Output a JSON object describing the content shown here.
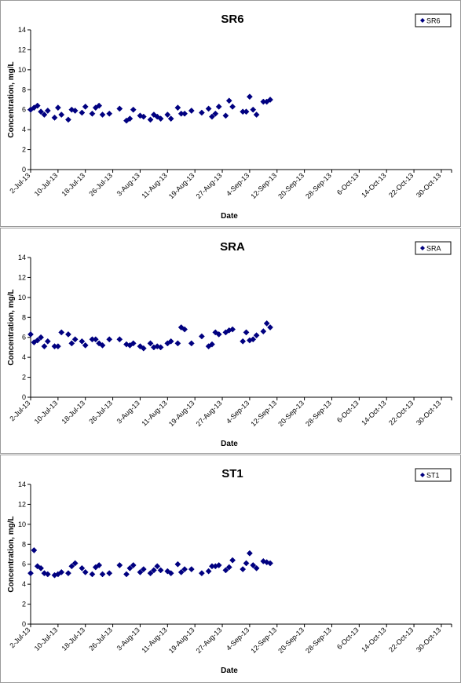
{
  "chart_data": [
    {
      "type": "scatter",
      "title": "SR6",
      "xlabel": "Date",
      "ylabel": "Concentration, mg/L",
      "ylim": [
        0,
        14
      ],
      "yticks": [
        0,
        2,
        4,
        6,
        8,
        10,
        12,
        14
      ],
      "xlim": [
        "2-Jul-13",
        "2-Nov-13"
      ],
      "xtick_labels": [
        "2-Jul-13",
        "10-Jul-13",
        "18-Jul-13",
        "26-Jul-13",
        "3-Aug-13",
        "11-Aug-13",
        "19-Aug-13",
        "27-Aug-13",
        "4-Sep-13",
        "12-Sep-13",
        "20-Sep-13",
        "28-Sep-13",
        "6-Oct-13",
        "14-Oct-13",
        "22-Oct-13",
        "30-Oct-13"
      ],
      "grid": false,
      "legend_position": "top-right",
      "marker_color": "#000080",
      "series": [
        {
          "name": "SR6",
          "points": [
            {
              "x": "2-Jul-13",
              "y": 6.0
            },
            {
              "x": "3-Jul-13",
              "y": 6.2
            },
            {
              "x": "4-Jul-13",
              "y": 6.4
            },
            {
              "x": "5-Jul-13",
              "y": 5.8
            },
            {
              "x": "6-Jul-13",
              "y": 5.5
            },
            {
              "x": "7-Jul-13",
              "y": 5.9
            },
            {
              "x": "9-Jul-13",
              "y": 5.2
            },
            {
              "x": "10-Jul-13",
              "y": 6.2
            },
            {
              "x": "11-Jul-13",
              "y": 5.5
            },
            {
              "x": "13-Jul-13",
              "y": 5.0
            },
            {
              "x": "14-Jul-13",
              "y": 6.0
            },
            {
              "x": "15-Jul-13",
              "y": 5.9
            },
            {
              "x": "17-Jul-13",
              "y": 5.7
            },
            {
              "x": "18-Jul-13",
              "y": 6.3
            },
            {
              "x": "20-Jul-13",
              "y": 5.6
            },
            {
              "x": "21-Jul-13",
              "y": 6.2
            },
            {
              "x": "22-Jul-13",
              "y": 6.4
            },
            {
              "x": "23-Jul-13",
              "y": 5.5
            },
            {
              "x": "25-Jul-13",
              "y": 5.6
            },
            {
              "x": "28-Jul-13",
              "y": 6.1
            },
            {
              "x": "30-Jul-13",
              "y": 4.9
            },
            {
              "x": "31-Jul-13",
              "y": 5.1
            },
            {
              "x": "1-Aug-13",
              "y": 6.0
            },
            {
              "x": "3-Aug-13",
              "y": 5.4
            },
            {
              "x": "4-Aug-13",
              "y": 5.3
            },
            {
              "x": "6-Aug-13",
              "y": 5.0
            },
            {
              "x": "7-Aug-13",
              "y": 5.5
            },
            {
              "x": "8-Aug-13",
              "y": 5.3
            },
            {
              "x": "9-Aug-13",
              "y": 5.1
            },
            {
              "x": "11-Aug-13",
              "y": 5.5
            },
            {
              "x": "12-Aug-13",
              "y": 5.1
            },
            {
              "x": "14-Aug-13",
              "y": 6.2
            },
            {
              "x": "15-Aug-13",
              "y": 5.6
            },
            {
              "x": "16-Aug-13",
              "y": 5.6
            },
            {
              "x": "18-Aug-13",
              "y": 5.9
            },
            {
              "x": "21-Aug-13",
              "y": 5.7
            },
            {
              "x": "23-Aug-13",
              "y": 6.1
            },
            {
              "x": "24-Aug-13",
              "y": 5.3
            },
            {
              "x": "25-Aug-13",
              "y": 5.6
            },
            {
              "x": "26-Aug-13",
              "y": 6.3
            },
            {
              "x": "28-Aug-13",
              "y": 5.4
            },
            {
              "x": "29-Aug-13",
              "y": 6.9
            },
            {
              "x": "30-Aug-13",
              "y": 6.3
            },
            {
              "x": "2-Sep-13",
              "y": 5.8
            },
            {
              "x": "3-Sep-13",
              "y": 5.8
            },
            {
              "x": "4-Sep-13",
              "y": 7.3
            },
            {
              "x": "5-Sep-13",
              "y": 6.0
            },
            {
              "x": "6-Sep-13",
              "y": 5.5
            },
            {
              "x": "8-Sep-13",
              "y": 6.8
            },
            {
              "x": "9-Sep-13",
              "y": 6.8
            },
            {
              "x": "10-Sep-13",
              "y": 7.0
            }
          ]
        }
      ]
    },
    {
      "type": "scatter",
      "title": "SRA",
      "xlabel": "Date",
      "ylabel": "Concentration, mg/L",
      "ylim": [
        0,
        14
      ],
      "yticks": [
        0,
        2,
        4,
        6,
        8,
        10,
        12,
        14
      ],
      "xlim": [
        "2-Jul-13",
        "2-Nov-13"
      ],
      "xtick_labels": [
        "2-Jul-13",
        "10-Jul-13",
        "18-Jul-13",
        "26-Jul-13",
        "3-Aug-13",
        "11-Aug-13",
        "19-Aug-13",
        "27-Aug-13",
        "4-Sep-13",
        "12-Sep-13",
        "20-Sep-13",
        "28-Sep-13",
        "6-Oct-13",
        "14-Oct-13",
        "22-Oct-13",
        "30-Oct-13"
      ],
      "grid": false,
      "legend_position": "top-right",
      "marker_color": "#000080",
      "series": [
        {
          "name": "SRA",
          "points": [
            {
              "x": "2-Jul-13",
              "y": 6.3
            },
            {
              "x": "3-Jul-13",
              "y": 5.5
            },
            {
              "x": "4-Jul-13",
              "y": 5.7
            },
            {
              "x": "5-Jul-13",
              "y": 6.0
            },
            {
              "x": "6-Jul-13",
              "y": 5.1
            },
            {
              "x": "7-Jul-13",
              "y": 5.6
            },
            {
              "x": "9-Jul-13",
              "y": 5.1
            },
            {
              "x": "10-Jul-13",
              "y": 5.1
            },
            {
              "x": "11-Jul-13",
              "y": 6.5
            },
            {
              "x": "13-Jul-13",
              "y": 6.3
            },
            {
              "x": "14-Jul-13",
              "y": 5.4
            },
            {
              "x": "15-Jul-13",
              "y": 5.8
            },
            {
              "x": "17-Jul-13",
              "y": 5.6
            },
            {
              "x": "18-Jul-13",
              "y": 5.2
            },
            {
              "x": "20-Jul-13",
              "y": 5.8
            },
            {
              "x": "21-Jul-13",
              "y": 5.8
            },
            {
              "x": "22-Jul-13",
              "y": 5.4
            },
            {
              "x": "23-Jul-13",
              "y": 5.2
            },
            {
              "x": "25-Jul-13",
              "y": 5.8
            },
            {
              "x": "28-Jul-13",
              "y": 5.8
            },
            {
              "x": "30-Jul-13",
              "y": 5.3
            },
            {
              "x": "31-Jul-13",
              "y": 5.2
            },
            {
              "x": "1-Aug-13",
              "y": 5.4
            },
            {
              "x": "3-Aug-13",
              "y": 5.1
            },
            {
              "x": "4-Aug-13",
              "y": 4.9
            },
            {
              "x": "6-Aug-13",
              "y": 5.4
            },
            {
              "x": "7-Aug-13",
              "y": 5.0
            },
            {
              "x": "8-Aug-13",
              "y": 5.1
            },
            {
              "x": "9-Aug-13",
              "y": 5.0
            },
            {
              "x": "11-Aug-13",
              "y": 5.4
            },
            {
              "x": "12-Aug-13",
              "y": 5.6
            },
            {
              "x": "14-Aug-13",
              "y": 5.4
            },
            {
              "x": "15-Aug-13",
              "y": 7.0
            },
            {
              "x": "16-Aug-13",
              "y": 6.8
            },
            {
              "x": "18-Aug-13",
              "y": 5.4
            },
            {
              "x": "21-Aug-13",
              "y": 6.1
            },
            {
              "x": "23-Aug-13",
              "y": 5.1
            },
            {
              "x": "24-Aug-13",
              "y": 5.3
            },
            {
              "x": "25-Aug-13",
              "y": 6.5
            },
            {
              "x": "26-Aug-13",
              "y": 6.3
            },
            {
              "x": "28-Aug-13",
              "y": 6.5
            },
            {
              "x": "29-Aug-13",
              "y": 6.7
            },
            {
              "x": "30-Aug-13",
              "y": 6.8
            },
            {
              "x": "2-Sep-13",
              "y": 5.6
            },
            {
              "x": "3-Sep-13",
              "y": 6.5
            },
            {
              "x": "4-Sep-13",
              "y": 5.7
            },
            {
              "x": "5-Sep-13",
              "y": 5.8
            },
            {
              "x": "6-Sep-13",
              "y": 6.2
            },
            {
              "x": "8-Sep-13",
              "y": 6.6
            },
            {
              "x": "9-Sep-13",
              "y": 7.4
            },
            {
              "x": "10-Sep-13",
              "y": 7.0
            }
          ]
        }
      ]
    },
    {
      "type": "scatter",
      "title": "ST1",
      "xlabel": "Date",
      "ylabel": "Concentration, mg/L",
      "ylim": [
        0,
        14
      ],
      "yticks": [
        0,
        2,
        4,
        6,
        8,
        10,
        12,
        14
      ],
      "xlim": [
        "2-Jul-13",
        "2-Nov-13"
      ],
      "xtick_labels": [
        "2-Jul-13",
        "10-Jul-13",
        "18-Jul-13",
        "26-Jul-13",
        "3-Aug-13",
        "11-Aug-13",
        "19-Aug-13",
        "27-Aug-13",
        "4-Sep-13",
        "12-Sep-13",
        "20-Sep-13",
        "28-Sep-13",
        "6-Oct-13",
        "14-Oct-13",
        "22-Oct-13",
        "30-Oct-13"
      ],
      "grid": false,
      "legend_position": "top-right",
      "marker_color": "#000080",
      "series": [
        {
          "name": "ST1",
          "points": [
            {
              "x": "2-Jul-13",
              "y": 5.1
            },
            {
              "x": "3-Jul-13",
              "y": 7.4
            },
            {
              "x": "4-Jul-13",
              "y": 5.8
            },
            {
              "x": "5-Jul-13",
              "y": 5.6
            },
            {
              "x": "6-Jul-13",
              "y": 5.1
            },
            {
              "x": "7-Jul-13",
              "y": 5.0
            },
            {
              "x": "9-Jul-13",
              "y": 4.9
            },
            {
              "x": "10-Jul-13",
              "y": 5.0
            },
            {
              "x": "11-Jul-13",
              "y": 5.2
            },
            {
              "x": "13-Jul-13",
              "y": 5.1
            },
            {
              "x": "14-Jul-13",
              "y": 5.8
            },
            {
              "x": "15-Jul-13",
              "y": 6.1
            },
            {
              "x": "17-Jul-13",
              "y": 5.6
            },
            {
              "x": "18-Jul-13",
              "y": 5.2
            },
            {
              "x": "20-Jul-13",
              "y": 5.0
            },
            {
              "x": "21-Jul-13",
              "y": 5.7
            },
            {
              "x": "22-Jul-13",
              "y": 5.9
            },
            {
              "x": "23-Jul-13",
              "y": 5.0
            },
            {
              "x": "25-Jul-13",
              "y": 5.1
            },
            {
              "x": "28-Jul-13",
              "y": 5.9
            },
            {
              "x": "30-Jul-13",
              "y": 5.0
            },
            {
              "x": "31-Jul-13",
              "y": 5.6
            },
            {
              "x": "1-Aug-13",
              "y": 5.9
            },
            {
              "x": "3-Aug-13",
              "y": 5.2
            },
            {
              "x": "4-Aug-13",
              "y": 5.5
            },
            {
              "x": "6-Aug-13",
              "y": 5.1
            },
            {
              "x": "7-Aug-13",
              "y": 5.4
            },
            {
              "x": "8-Aug-13",
              "y": 5.8
            },
            {
              "x": "9-Aug-13",
              "y": 5.4
            },
            {
              "x": "11-Aug-13",
              "y": 5.3
            },
            {
              "x": "12-Aug-13",
              "y": 5.1
            },
            {
              "x": "14-Aug-13",
              "y": 6.0
            },
            {
              "x": "15-Aug-13",
              "y": 5.2
            },
            {
              "x": "16-Aug-13",
              "y": 5.5
            },
            {
              "x": "18-Aug-13",
              "y": 5.5
            },
            {
              "x": "21-Aug-13",
              "y": 5.1
            },
            {
              "x": "23-Aug-13",
              "y": 5.3
            },
            {
              "x": "24-Aug-13",
              "y": 5.8
            },
            {
              "x": "25-Aug-13",
              "y": 5.8
            },
            {
              "x": "26-Aug-13",
              "y": 5.9
            },
            {
              "x": "28-Aug-13",
              "y": 5.4
            },
            {
              "x": "29-Aug-13",
              "y": 5.7
            },
            {
              "x": "30-Aug-13",
              "y": 6.4
            },
            {
              "x": "2-Sep-13",
              "y": 5.5
            },
            {
              "x": "3-Sep-13",
              "y": 6.1
            },
            {
              "x": "4-Sep-13",
              "y": 7.1
            },
            {
              "x": "5-Sep-13",
              "y": 5.9
            },
            {
              "x": "6-Sep-13",
              "y": 5.6
            },
            {
              "x": "8-Sep-13",
              "y": 6.3
            },
            {
              "x": "9-Sep-13",
              "y": 6.2
            },
            {
              "x": "10-Sep-13",
              "y": 6.1
            }
          ]
        }
      ]
    }
  ]
}
